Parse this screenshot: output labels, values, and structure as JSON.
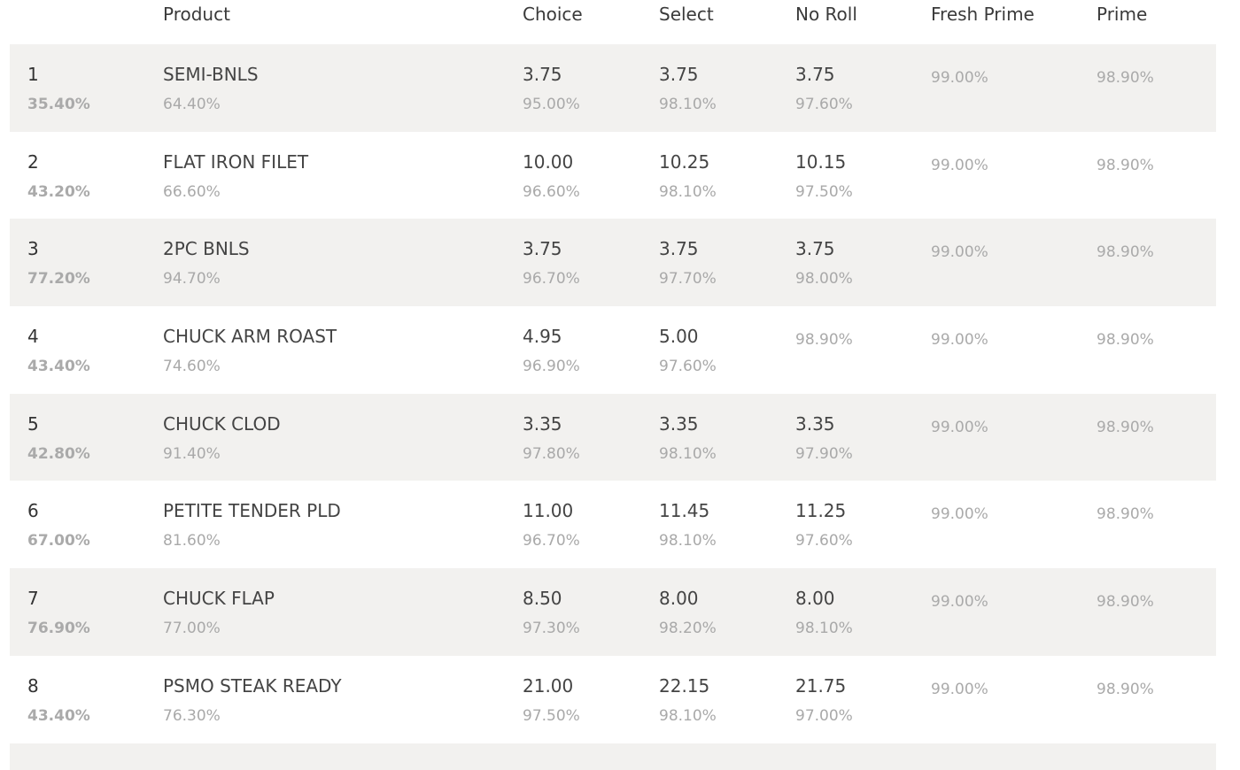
{
  "headers": {
    "rank": "",
    "product": "Product",
    "choice": "Choice",
    "select": "Select",
    "no_roll": "No Roll",
    "fresh_prime": "Fresh Prime",
    "prime": "Prime"
  },
  "rows": [
    {
      "rank": "1",
      "rank_pct": "35.40%",
      "product": "SEMI-BNLS",
      "product_pct": "64.40%",
      "choice": "3.75",
      "choice_pct": "95.00%",
      "select": "3.75",
      "select_pct": "98.10%",
      "no_roll": "3.75",
      "no_roll_pct": "97.60%",
      "fresh_prime": "99.00%",
      "prime": "98.90%"
    },
    {
      "rank": "2",
      "rank_pct": "43.20%",
      "product": "FLAT IRON FILET",
      "product_pct": "66.60%",
      "choice": "10.00",
      "choice_pct": "96.60%",
      "select": "10.25",
      "select_pct": "98.10%",
      "no_roll": "10.15",
      "no_roll_pct": "97.50%",
      "fresh_prime": "99.00%",
      "prime": "98.90%"
    },
    {
      "rank": "3",
      "rank_pct": "77.20%",
      "product": "2PC BNLS",
      "product_pct": "94.70%",
      "choice": "3.75",
      "choice_pct": "96.70%",
      "select": "3.75",
      "select_pct": "97.70%",
      "no_roll": "3.75",
      "no_roll_pct": "98.00%",
      "fresh_prime": "99.00%",
      "prime": "98.90%"
    },
    {
      "rank": "4",
      "rank_pct": "43.40%",
      "product": "CHUCK ARM ROAST",
      "product_pct": "74.60%",
      "choice": "4.95",
      "choice_pct": "96.90%",
      "select": "5.00",
      "select_pct": "97.60%",
      "no_roll": "",
      "no_roll_pct": "98.90%",
      "fresh_prime": "99.00%",
      "prime": "98.90%"
    },
    {
      "rank": "5",
      "rank_pct": "42.80%",
      "product": "CHUCK CLOD",
      "product_pct": "91.40%",
      "choice": "3.35",
      "choice_pct": "97.80%",
      "select": "3.35",
      "select_pct": "98.10%",
      "no_roll": "3.35",
      "no_roll_pct": "97.90%",
      "fresh_prime": "99.00%",
      "prime": "98.90%"
    },
    {
      "rank": "6",
      "rank_pct": "67.00%",
      "product": "PETITE TENDER PLD",
      "product_pct": "81.60%",
      "choice": "11.00",
      "choice_pct": "96.70%",
      "select": "11.45",
      "select_pct": "98.10%",
      "no_roll": "11.25",
      "no_roll_pct": "97.60%",
      "fresh_prime": "99.00%",
      "prime": "98.90%"
    },
    {
      "rank": "7",
      "rank_pct": "76.90%",
      "product": "CHUCK FLAP",
      "product_pct": "77.00%",
      "choice": "8.50",
      "choice_pct": "97.30%",
      "select": "8.00",
      "select_pct": "98.20%",
      "no_roll": "8.00",
      "no_roll_pct": "98.10%",
      "fresh_prime": "99.00%",
      "prime": "98.90%"
    },
    {
      "rank": "8",
      "rank_pct": "43.40%",
      "product": "PSMO STEAK READY",
      "product_pct": "76.30%",
      "choice": "21.00",
      "choice_pct": "97.50%",
      "select": "22.15",
      "select_pct": "98.10%",
      "no_roll": "21.75",
      "no_roll_pct": "97.00%",
      "fresh_prime": "99.00%",
      "prime": "98.90%"
    }
  ],
  "colors": {
    "row_shade": "#f2f1ef",
    "primary_text": "#444444",
    "secondary_text": "#a9a9a9"
  }
}
